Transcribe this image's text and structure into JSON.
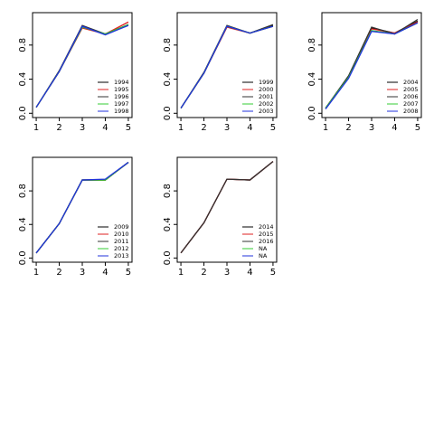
{
  "chart_data": [
    {
      "type": "line",
      "x": [
        1,
        2,
        3,
        4,
        5
      ],
      "xlim": [
        0.84,
        5.16
      ],
      "xticks": [
        1,
        2,
        3,
        4,
        5
      ],
      "ylim": [
        -0.05,
        1.18
      ],
      "yticks": [
        {
          "value": 0,
          "label": "0.0"
        },
        {
          "value": 0.4,
          "label": "0.4"
        },
        {
          "value": 0.8,
          "label": "0.8"
        }
      ],
      "legend": "bottom right",
      "series": [
        {
          "name": "1994",
          "color": "#000000",
          "values": [
            0.07,
            0.49,
            1.02,
            0.93,
            1.04
          ]
        },
        {
          "name": "1995",
          "color": "#df2020",
          "values": [
            0.07,
            0.49,
            1.0,
            0.93,
            1.07
          ]
        },
        {
          "name": "1996",
          "color": "#333333",
          "values": [
            0.07,
            0.5,
            1.03,
            0.93,
            1.03
          ]
        },
        {
          "name": "1997",
          "color": "#33cc33",
          "values": [
            0.07,
            0.49,
            1.01,
            0.93,
            1.04
          ]
        },
        {
          "name": "1998",
          "color": "#2233dd",
          "values": [
            0.07,
            0.49,
            1.02,
            0.92,
            1.03
          ]
        }
      ]
    },
    {
      "type": "line",
      "x": [
        1,
        2,
        3,
        4,
        5
      ],
      "xlim": [
        0.84,
        5.16
      ],
      "xticks": [
        1,
        2,
        3,
        4,
        5
      ],
      "ylim": [
        -0.05,
        1.18
      ],
      "yticks": [
        {
          "value": 0,
          "label": "0.0"
        },
        {
          "value": 0.4,
          "label": "0.4"
        },
        {
          "value": 0.8,
          "label": "0.8"
        }
      ],
      "legend": "bottom right",
      "series": [
        {
          "name": "1999",
          "color": "#000000",
          "values": [
            0.06,
            0.47,
            1.02,
            0.94,
            1.03
          ]
        },
        {
          "name": "2000",
          "color": "#df2020",
          "values": [
            0.06,
            0.47,
            1.01,
            0.94,
            1.02
          ]
        },
        {
          "name": "2001",
          "color": "#333333",
          "values": [
            0.06,
            0.48,
            1.03,
            0.94,
            1.04
          ]
        },
        {
          "name": "2002",
          "color": "#33cc33",
          "values": [
            0.06,
            0.47,
            1.02,
            0.94,
            1.02
          ]
        },
        {
          "name": "2003",
          "color": "#2233dd",
          "values": [
            0.06,
            0.47,
            1.02,
            0.94,
            1.02
          ]
        }
      ]
    },
    {
      "type": "line",
      "x": [
        1,
        2,
        3,
        4,
        5
      ],
      "xlim": [
        0.84,
        5.16
      ],
      "xticks": [
        1,
        2,
        3,
        4,
        5
      ],
      "ylim": [
        -0.05,
        1.18
      ],
      "yticks": [
        {
          "value": 0,
          "label": "0.0"
        },
        {
          "value": 0.4,
          "label": "0.4"
        },
        {
          "value": 0.8,
          "label": "0.8"
        }
      ],
      "legend": "bottom right",
      "series": [
        {
          "name": "2004",
          "color": "#000000",
          "values": [
            0.06,
            0.43,
            1.0,
            0.94,
            1.08
          ]
        },
        {
          "name": "2005",
          "color": "#df2020",
          "values": [
            0.06,
            0.43,
            0.99,
            0.94,
            1.07
          ]
        },
        {
          "name": "2006",
          "color": "#333333",
          "values": [
            0.06,
            0.44,
            1.01,
            0.93,
            1.1
          ]
        },
        {
          "name": "2007",
          "color": "#33cc33",
          "values": [
            0.06,
            0.42,
            0.97,
            0.93,
            1.06
          ]
        },
        {
          "name": "2008",
          "color": "#2233dd",
          "values": [
            0.05,
            0.41,
            0.96,
            0.93,
            1.06
          ]
        }
      ]
    },
    {
      "type": "line",
      "x": [
        1,
        2,
        3,
        4,
        5
      ],
      "xlim": [
        0.84,
        5.16
      ],
      "xticks": [
        1,
        2,
        3,
        4,
        5
      ],
      "ylim": [
        -0.05,
        1.2
      ],
      "yticks": [
        {
          "value": 0,
          "label": "0.0"
        },
        {
          "value": 0.4,
          "label": "0.4"
        },
        {
          "value": 0.8,
          "label": "0.8"
        }
      ],
      "legend": "bottom right",
      "series": [
        {
          "name": "2009",
          "color": "#000000",
          "values": [
            0.06,
            0.41,
            0.93,
            0.93,
            1.14
          ]
        },
        {
          "name": "2010",
          "color": "#df2020",
          "values": [
            0.06,
            0.41,
            0.93,
            0.93,
            1.14
          ]
        },
        {
          "name": "2011",
          "color": "#333333",
          "values": [
            0.06,
            0.41,
            0.93,
            0.93,
            1.14
          ]
        },
        {
          "name": "2012",
          "color": "#33cc33",
          "values": [
            0.06,
            0.41,
            0.93,
            0.93,
            1.14
          ]
        },
        {
          "name": "2013",
          "color": "#2233dd",
          "values": [
            0.06,
            0.41,
            0.93,
            0.94,
            1.14
          ]
        }
      ]
    },
    {
      "type": "line",
      "x": [
        1,
        2,
        3,
        4,
        5
      ],
      "xlim": [
        0.84,
        5.16
      ],
      "xticks": [
        1,
        2,
        3,
        4,
        5
      ],
      "ylim": [
        -0.05,
        1.2
      ],
      "yticks": [
        {
          "value": 0,
          "label": "0.0"
        },
        {
          "value": 0.4,
          "label": "0.4"
        },
        {
          "value": 0.8,
          "label": "0.8"
        }
      ],
      "legend": "bottom right",
      "series": [
        {
          "name": "2014",
          "color": "#000000",
          "values": [
            0.06,
            0.42,
            0.94,
            0.93,
            1.15
          ]
        },
        {
          "name": "2015",
          "color": "#df2020",
          "values": [
            0.06,
            0.42,
            0.94,
            0.93,
            1.15
          ]
        },
        {
          "name": "2016",
          "color": "#333333",
          "values": [
            0.06,
            0.42,
            0.94,
            0.93,
            1.15
          ]
        },
        {
          "name": "NA",
          "color": "#33cc33",
          "values": [
            null,
            null,
            null,
            null,
            null
          ]
        },
        {
          "name": "NA",
          "color": "#2233dd",
          "values": [
            null,
            null,
            null,
            null,
            null
          ]
        }
      ]
    }
  ]
}
